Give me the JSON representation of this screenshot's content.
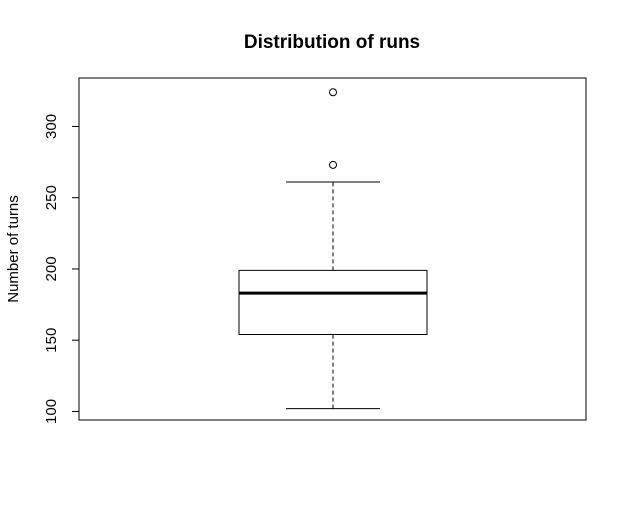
{
  "chart_data": {
    "type": "boxplot",
    "title": "Distribution of runs",
    "xlabel": "",
    "ylabel": "Number of turns",
    "ylim": [
      94,
      334
    ],
    "yticks": [
      100,
      150,
      200,
      250,
      300
    ],
    "box": {
      "whisker_low": 102,
      "q1": 154,
      "median": 183,
      "q3": 199,
      "whisker_high": 261
    },
    "outliers": [
      273,
      324
    ],
    "grid": false,
    "legend": "none"
  }
}
